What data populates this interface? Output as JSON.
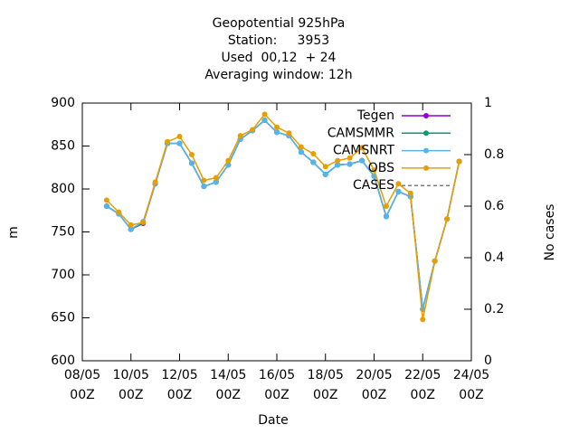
{
  "chart_data": {
    "type": "line",
    "title": [
      "Geopotential 925hPa",
      "Station:     3953",
      "Used  00,12  + 24",
      "Averaging window: 12h"
    ],
    "xlabel": "Date",
    "ylabel": "m",
    "y2label": "No cases",
    "x": [
      "09/05 00Z",
      "09/05 12Z",
      "10/05 00Z",
      "10/05 12Z",
      "11/05 00Z",
      "11/05 12Z",
      "12/05 00Z",
      "12/05 12Z",
      "13/05 00Z",
      "13/05 12Z",
      "14/05 00Z",
      "14/05 12Z",
      "15/05 00Z",
      "15/05 12Z",
      "16/05 00Z",
      "16/05 12Z",
      "17/05 00Z",
      "17/05 12Z",
      "18/05 00Z",
      "18/05 12Z",
      "19/05 00Z",
      "19/05 12Z",
      "20/05 00Z",
      "20/05 12Z",
      "21/05 00Z",
      "21/05 12Z",
      "22/05 00Z",
      "22/05 12Z",
      "23/05 00Z",
      "23/05 12Z"
    ],
    "xlim": [
      "08/05 00Z",
      "24/05 00Z"
    ],
    "xticks": [
      "08/05 00Z",
      "10/05 00Z",
      "12/05 00Z",
      "14/05 00Z",
      "16/05 00Z",
      "18/05 00Z",
      "20/05 00Z",
      "22/05 00Z",
      "24/05 00Z"
    ],
    "ylim": [
      600,
      900
    ],
    "yticks": [
      600,
      650,
      700,
      750,
      800,
      850,
      900
    ],
    "y2lim": [
      0,
      1
    ],
    "y2ticks": [
      0,
      0.2,
      0.4,
      0.6,
      0.8,
      1
    ],
    "legend": "top-right",
    "series": [
      {
        "name": "Tegen",
        "color": "#9400d3",
        "values": [
          780,
          771,
          753,
          760,
          806,
          853,
          853,
          830,
          803,
          808,
          828,
          858,
          868,
          880,
          866,
          862,
          843,
          831,
          817,
          828,
          829,
          833,
          815,
          768,
          797,
          791,
          660,
          716,
          765,
          832
        ]
      },
      {
        "name": "CAMSMMR",
        "color": "#009e73",
        "values": [
          780,
          771,
          753,
          761,
          806,
          853,
          853,
          830,
          803,
          808,
          828,
          858,
          868,
          880,
          866,
          862,
          843,
          831,
          817,
          828,
          829,
          833,
          815,
          768,
          797,
          791,
          660,
          716,
          765,
          832
        ]
      },
      {
        "name": "CAMSNRT",
        "color": "#56b4e9",
        "values": [
          780,
          771,
          753,
          762,
          806,
          853,
          853,
          830,
          803,
          808,
          828,
          858,
          868,
          880,
          866,
          862,
          843,
          831,
          817,
          828,
          829,
          833,
          815,
          768,
          797,
          791,
          660,
          716,
          765,
          832
        ]
      },
      {
        "name": "OBS",
        "color": "#e69f00",
        "values": [
          787,
          773,
          758,
          761,
          808,
          855,
          861,
          840,
          810,
          813,
          833,
          862,
          869,
          887,
          872,
          865,
          849,
          841,
          826,
          833,
          836,
          848,
          822,
          780,
          806,
          795,
          648,
          716,
          765,
          832
        ]
      },
      {
        "name": "CASES",
        "color": "#808080",
        "axis": "y2",
        "dashed": true,
        "values": [
          null,
          null,
          null,
          null,
          null,
          null,
          null,
          null,
          null,
          null,
          null,
          null,
          null,
          null,
          null,
          null,
          null,
          null,
          null,
          null,
          null,
          null,
          null,
          null,
          null,
          null,
          null,
          null,
          null,
          null
        ]
      }
    ]
  }
}
